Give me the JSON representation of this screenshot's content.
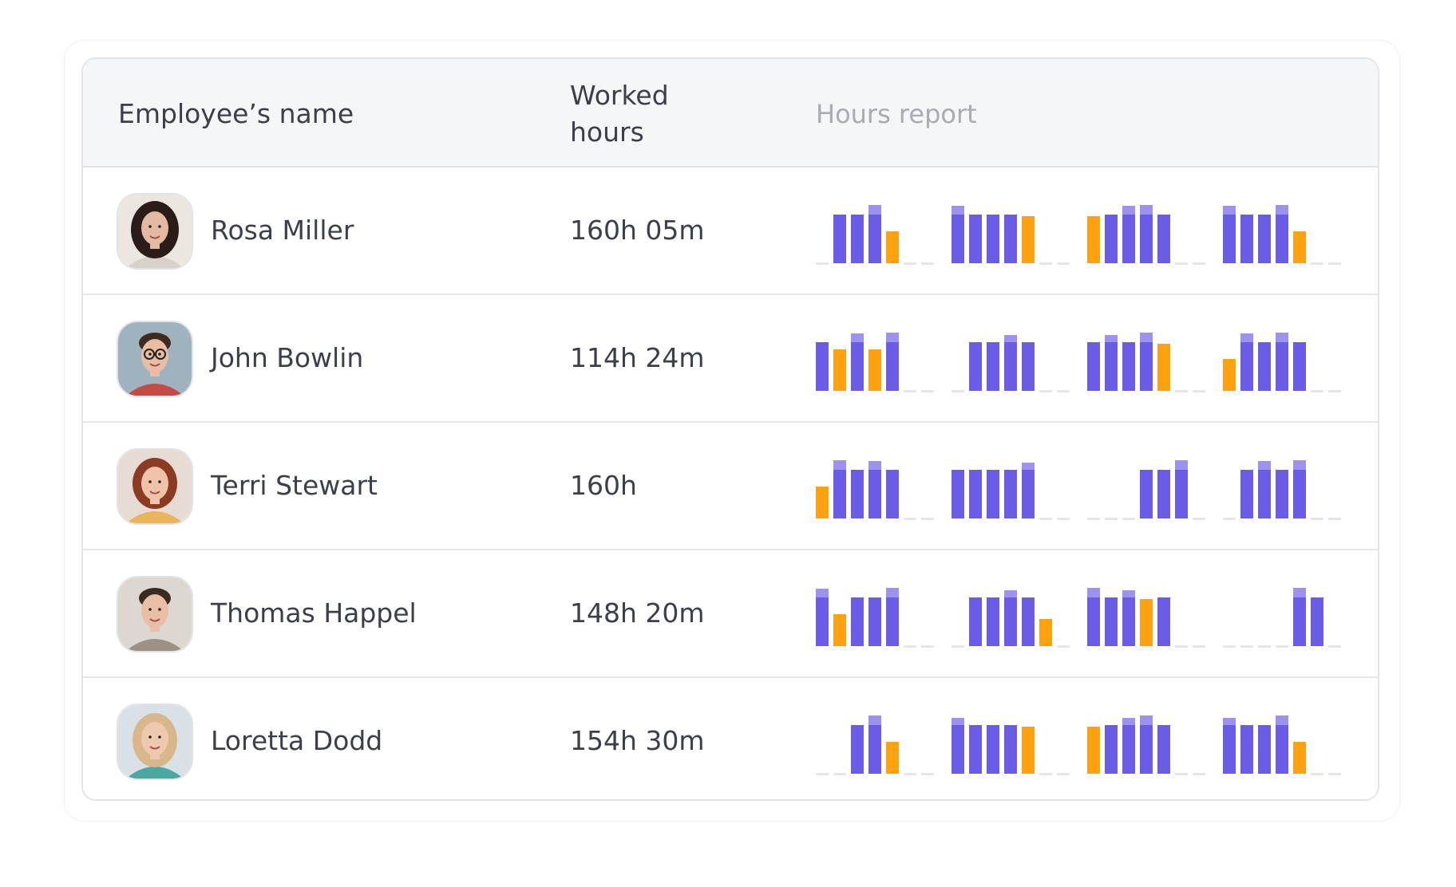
{
  "header": {
    "name_label": "Employee’s name",
    "hours_label_line1": "Worked",
    "hours_label_line2": "hours",
    "report_label": "Hours report"
  },
  "colors": {
    "worked": "#6b5ce7",
    "overtime": "#9d92f0",
    "partial": "#ffa20d",
    "empty": "#e6e7eb"
  },
  "chart_data": {
    "type": "bar",
    "note_values": "each employee has 4 weeks x 7 days; value is hours level 0-1.25 (0 = no work, 1 = full day, >1 = overtime, partial days shown as partial)",
    "rows": [
      {
        "name": "Rosa Miller",
        "worked": "160h 05m",
        "avatar": "woman-curly-dark",
        "days": [
          [
            0,
            0.85,
            0.85,
            1.02,
            0.55,
            0,
            0
          ],
          [
            1,
            0.85,
            0.85,
            0.85,
            0.82,
            0,
            0
          ],
          [
            0.82,
            0.85,
            1.0,
            1.02,
            0.85,
            0,
            0
          ],
          [
            1.0,
            0.85,
            0.85,
            1.02,
            0.55,
            0,
            0
          ]
        ],
        "kinds": [
          [
            "e",
            "w",
            "w",
            "w",
            "p",
            "e",
            "e"
          ],
          [
            "w",
            "w",
            "w",
            "w",
            "p",
            "e",
            "e"
          ],
          [
            "p",
            "w",
            "w",
            "w",
            "w",
            "e",
            "e"
          ],
          [
            "w",
            "w",
            "w",
            "w",
            "p",
            "e",
            "e"
          ]
        ]
      },
      {
        "name": "John Bowlin",
        "worked": "114h 24m",
        "avatar": "man-glasses",
        "days": [
          [
            0.85,
            0.72,
            1.0,
            0.72,
            1.02,
            0,
            0
          ],
          [
            0,
            0.85,
            0.85,
            0.97,
            0.85,
            0,
            0
          ],
          [
            0.85,
            0.97,
            0.85,
            1.02,
            0.82,
            0,
            0
          ],
          [
            0.55,
            1.0,
            0.85,
            1.02,
            0.85,
            0,
            0
          ]
        ],
        "kinds": [
          [
            "w",
            "p",
            "w",
            "p",
            "w",
            "e",
            "e"
          ],
          [
            "e",
            "w",
            "w",
            "w",
            "w",
            "e",
            "e"
          ],
          [
            "w",
            "w",
            "w",
            "w",
            "p",
            "e",
            "e"
          ],
          [
            "p",
            "w",
            "w",
            "w",
            "w",
            "e",
            "e"
          ]
        ]
      },
      {
        "name": "Terri Stewart",
        "worked": "160h",
        "avatar": "woman-redhead",
        "days": [
          [
            0.55,
            1.02,
            0.85,
            1.0,
            0.85,
            0,
            0
          ],
          [
            0.85,
            0.85,
            0.85,
            0.85,
            0.97,
            0,
            0
          ],
          [
            0,
            0,
            0,
            0.85,
            0.85,
            1.02,
            0
          ],
          [
            0,
            0.85,
            1.0,
            0.85,
            1.02,
            0,
            0
          ]
        ],
        "kinds": [
          [
            "p",
            "w",
            "w",
            "w",
            "w",
            "e",
            "e"
          ],
          [
            "w",
            "w",
            "w",
            "w",
            "w",
            "e",
            "e"
          ],
          [
            "e",
            "e",
            "e",
            "w",
            "w",
            "w",
            "e"
          ],
          [
            "e",
            "w",
            "w",
            "w",
            "w",
            "e",
            "e"
          ]
        ]
      },
      {
        "name": "Thomas Happel",
        "worked": "148h 20m",
        "avatar": "man-short-hair",
        "days": [
          [
            1.0,
            0.55,
            0.85,
            0.85,
            1.02,
            0,
            0
          ],
          [
            0,
            0.85,
            0.85,
            0.97,
            0.85,
            0.47,
            0
          ],
          [
            1.02,
            0.85,
            0.97,
            0.82,
            0.85,
            0,
            0
          ],
          [
            0,
            0,
            0,
            0,
            1.02,
            0.85,
            0
          ]
        ],
        "kinds": [
          [
            "w",
            "p",
            "w",
            "w",
            "w",
            "e",
            "e"
          ],
          [
            "e",
            "w",
            "w",
            "w",
            "w",
            "p",
            "e"
          ],
          [
            "w",
            "w",
            "w",
            "p",
            "w",
            "e",
            "e"
          ],
          [
            "e",
            "e",
            "e",
            "e",
            "w",
            "w",
            "e"
          ]
        ]
      },
      {
        "name": "Loretta Dodd",
        "worked": "154h 30m",
        "avatar": "woman-blonde",
        "days": [
          [
            0,
            0,
            0.85,
            1.02,
            0.55,
            0,
            0
          ],
          [
            0.97,
            0.85,
            0.85,
            0.85,
            0.82,
            0,
            0
          ],
          [
            0.82,
            0.85,
            0.97,
            1.02,
            0.85,
            0,
            0
          ],
          [
            0.97,
            0.85,
            0.85,
            1.02,
            0.55,
            0,
            0
          ]
        ],
        "kinds": [
          [
            "e",
            "e",
            "w",
            "w",
            "p",
            "e",
            "e"
          ],
          [
            "w",
            "w",
            "w",
            "w",
            "p",
            "e",
            "e"
          ],
          [
            "p",
            "w",
            "w",
            "w",
            "w",
            "e",
            "e"
          ],
          [
            "w",
            "w",
            "w",
            "w",
            "p",
            "e",
            "e"
          ]
        ]
      }
    ]
  }
}
